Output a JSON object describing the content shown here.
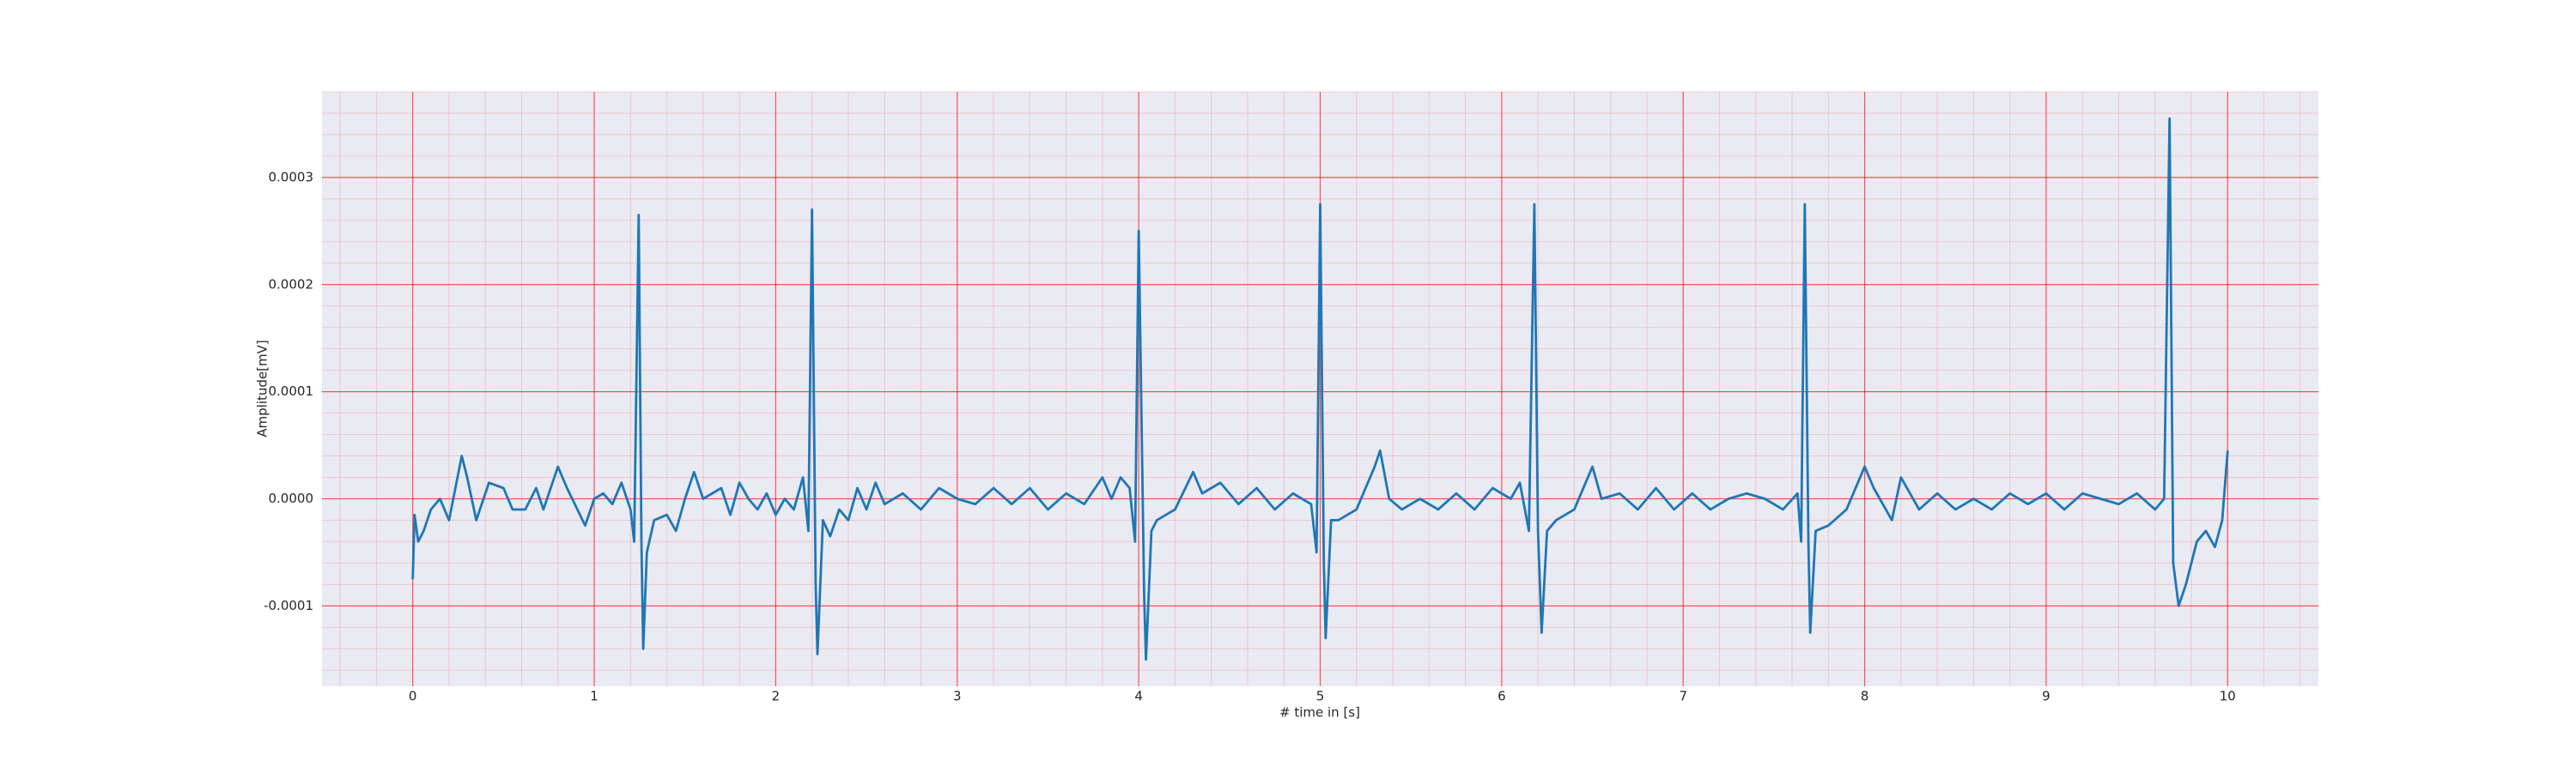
{
  "chart_data": {
    "type": "line",
    "xlabel": "# time in [s]",
    "ylabel": "Amplitude[mV]",
    "color": "#1f77b4",
    "grid": true,
    "grid_color": "#ff0000",
    "minor_grid": true,
    "background": "#eaeaf2",
    "xlim": [
      -0.5,
      10.5
    ],
    "xticks": [
      0,
      1,
      2,
      3,
      4,
      5,
      6,
      7,
      8,
      9,
      10
    ],
    "ylim": [
      -0.000175,
      0.00038
    ],
    "yticks": [
      {
        "value": -0.0001,
        "label": "-0.0001"
      },
      {
        "value": 0,
        "label": "0.0000"
      },
      {
        "value": 0.0001,
        "label": "0.0001"
      },
      {
        "value": 0.0002,
        "label": "0.0002"
      },
      {
        "value": 0.0003,
        "label": "0.0003"
      }
    ],
    "x": [
      0,
      0.01,
      0.03,
      0.06,
      0.1,
      0.15,
      0.2,
      0.27,
      0.3,
      0.35,
      0.42,
      0.5,
      0.55,
      0.62,
      0.68,
      0.72,
      0.8,
      0.85,
      0.95,
      1.0,
      1.05,
      1.1,
      1.15,
      1.2,
      1.22,
      1.245,
      1.26,
      1.27,
      1.29,
      1.33,
      1.4,
      1.45,
      1.5,
      1.55,
      1.6,
      1.7,
      1.75,
      1.8,
      1.85,
      1.9,
      1.95,
      2.0,
      2.05,
      2.1,
      2.15,
      2.18,
      2.2,
      2.22,
      2.23,
      2.26,
      2.3,
      2.35,
      2.4,
      2.45,
      2.5,
      2.55,
      2.6,
      2.7,
      2.8,
      2.9,
      3.0,
      3.1,
      3.2,
      3.3,
      3.4,
      3.5,
      3.6,
      3.7,
      3.8,
      3.85,
      3.9,
      3.95,
      3.98,
      4.0,
      4.03,
      4.04,
      4.07,
      4.1,
      4.2,
      4.3,
      4.35,
      4.45,
      4.55,
      4.65,
      4.75,
      4.85,
      4.95,
      4.98,
      5.0,
      5.02,
      5.03,
      5.06,
      5.1,
      5.2,
      5.3,
      5.33,
      5.38,
      5.45,
      5.55,
      5.65,
      5.75,
      5.85,
      5.95,
      6.05,
      6.1,
      6.15,
      6.18,
      6.2,
      6.22,
      6.25,
      6.3,
      6.4,
      6.5,
      6.55,
      6.65,
      6.75,
      6.85,
      6.95,
      7.05,
      7.15,
      7.25,
      7.35,
      7.45,
      7.55,
      7.63,
      7.65,
      7.67,
      7.69,
      7.7,
      7.73,
      7.8,
      7.9,
      8.0,
      8.05,
      8.15,
      8.2,
      8.3,
      8.4,
      8.5,
      8.6,
      8.7,
      8.8,
      8.9,
      9.0,
      9.1,
      9.2,
      9.3,
      9.4,
      9.5,
      9.6,
      9.65,
      9.68,
      9.7,
      9.73,
      9.77,
      9.83,
      9.88,
      9.93,
      9.97,
      10.0
    ],
    "values": [
      -7.5e-05,
      -1.5e-05,
      -4e-05,
      -3e-05,
      -1e-05,
      0,
      -2e-05,
      4e-05,
      2e-05,
      -2e-05,
      1.5e-05,
      1e-05,
      -1e-05,
      -1e-05,
      1e-05,
      -1e-05,
      3e-05,
      1e-05,
      -2.5e-05,
      0,
      5e-06,
      -5e-06,
      1.5e-05,
      -1e-05,
      -4e-05,
      0.000265,
      -4e-05,
      -0.00014,
      -5e-05,
      -2e-05,
      -1.5e-05,
      -3e-05,
      0,
      2.5e-05,
      0,
      1e-05,
      -1.5e-05,
      1.5e-05,
      0,
      -1e-05,
      5e-06,
      -1.5e-05,
      0,
      -1e-05,
      2e-05,
      -3e-05,
      0.00027,
      -8e-05,
      -0.000145,
      -2e-05,
      -3.5e-05,
      -1e-05,
      -2e-05,
      1e-05,
      -1e-05,
      1.5e-05,
      -5e-06,
      5e-06,
      -1e-05,
      1e-05,
      0,
      -5e-06,
      1e-05,
      -5e-06,
      1e-05,
      -1e-05,
      5e-06,
      -5e-06,
      2e-05,
      0,
      2e-05,
      1e-05,
      -4e-05,
      0.00025,
      -9e-05,
      -0.00015,
      -3e-05,
      -2e-05,
      -1e-05,
      2.5e-05,
      5e-06,
      1.5e-05,
      -5e-06,
      1e-05,
      -1e-05,
      5e-06,
      -5e-06,
      -5e-05,
      0.000275,
      -6e-05,
      -0.00013,
      -2e-05,
      -2e-05,
      -1e-05,
      3e-05,
      4.5e-05,
      0,
      -1e-05,
      0,
      -1e-05,
      5e-06,
      -1e-05,
      1e-05,
      0,
      1.5e-05,
      -3e-05,
      0.000275,
      -3e-05,
      -0.000125,
      -3e-05,
      -2e-05,
      -1e-05,
      3e-05,
      0,
      5e-06,
      -1e-05,
      1e-05,
      -1e-05,
      5e-06,
      -1e-05,
      0,
      5e-06,
      0,
      -1e-05,
      5e-06,
      -4e-05,
      0.000275,
      -4e-05,
      -0.000125,
      -3e-05,
      -2.5e-05,
      -1e-05,
      3e-05,
      1e-05,
      -2e-05,
      2e-05,
      -1e-05,
      5e-06,
      -1e-05,
      0,
      -1e-05,
      5e-06,
      -5e-06,
      5e-06,
      -1e-05,
      5e-06,
      0,
      -5e-06,
      5e-06,
      -1e-05,
      0,
      0.000355,
      -6e-05,
      -0.0001,
      -8e-05,
      -4e-05,
      -3e-05,
      -4.5e-05,
      -2e-05,
      4.5e-05
    ]
  }
}
